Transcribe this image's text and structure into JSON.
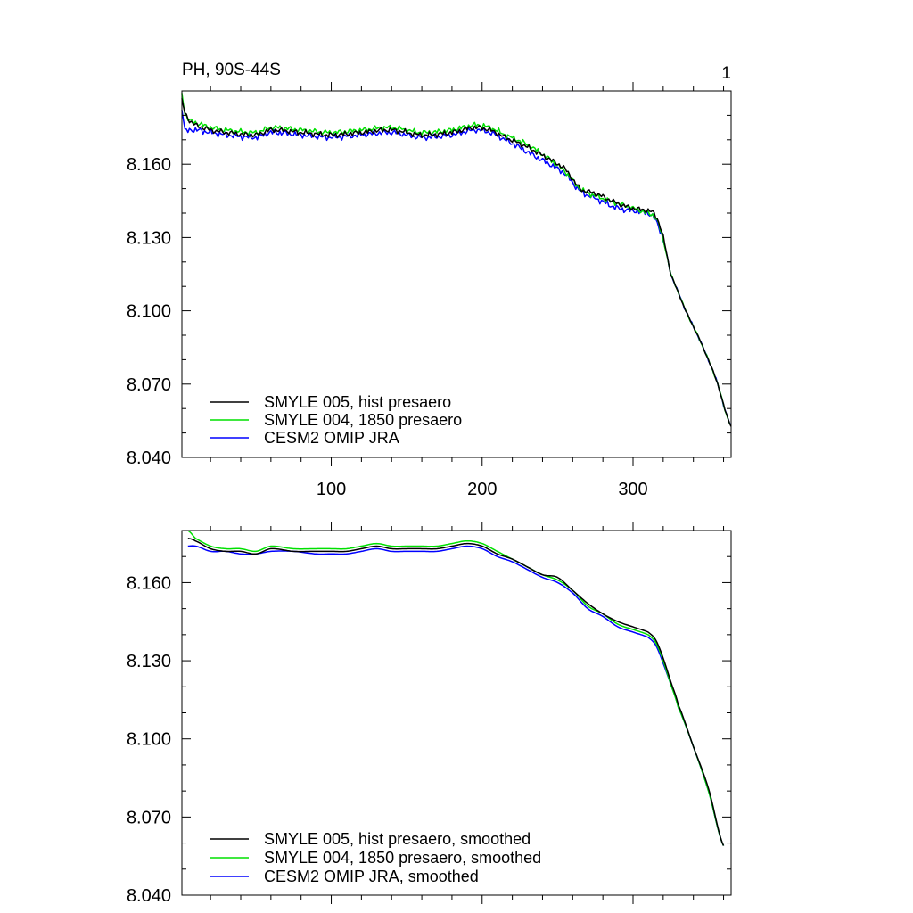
{
  "colors": {
    "SMYLE 005": "#000000",
    "SMYLE 004": "#00e000",
    "CESM2 OMIP": "#0000ff"
  },
  "chart_data": [
    {
      "type": "line",
      "title": "PH, 90S-44S",
      "panel_label": "1",
      "xlim": [
        1,
        365
      ],
      "ylim": [
        8.04,
        8.19
      ],
      "x_ticks": [
        100,
        200,
        300
      ],
      "x_tick_labels": [
        "100",
        "200",
        "300"
      ],
      "y_ticks": [
        8.04,
        8.07,
        8.1,
        8.13,
        8.16
      ],
      "y_tick_labels": [
        "8.040",
        "8.070",
        "8.100",
        "8.130",
        "8.160"
      ],
      "legend_position": "bottom-left",
      "series": [
        {
          "name": "SMYLE 005, hist presaero",
          "color_key": "SMYLE 005",
          "day_offset": 0,
          "noise": 0.0012,
          "x": [
            1,
            3,
            6,
            10,
            20,
            30,
            50,
            60,
            80,
            100,
            120,
            140,
            160,
            180,
            195,
            205,
            215,
            230,
            245,
            255,
            265,
            275,
            290,
            300,
            310,
            315,
            320,
            325,
            335,
            345,
            355,
            365
          ],
          "y": [
            8.186,
            8.181,
            8.178,
            8.176,
            8.174,
            8.173,
            8.172,
            8.174,
            8.173,
            8.172,
            8.173,
            8.174,
            8.172,
            8.173,
            8.175,
            8.174,
            8.171,
            8.167,
            8.162,
            8.158,
            8.15,
            8.148,
            8.144,
            8.142,
            8.141,
            8.139,
            8.13,
            8.115,
            8.1,
            8.087,
            8.072,
            8.053
          ]
        },
        {
          "name": "SMYLE 004, 1850 presaero",
          "color_key": "SMYLE 004",
          "day_offset": 0.001,
          "noise": 0.0012,
          "x": [
            1,
            3,
            6,
            10,
            20,
            30,
            50,
            60,
            80,
            100,
            120,
            140,
            160,
            180,
            195,
            205,
            215,
            230,
            245,
            255,
            265,
            275,
            290,
            300,
            310,
            315,
            320,
            325,
            335,
            345,
            355,
            365
          ],
          "y": [
            8.189,
            8.181,
            8.178,
            8.177,
            8.175,
            8.174,
            8.173,
            8.175,
            8.174,
            8.173,
            8.174,
            8.175,
            8.173,
            8.174,
            8.176,
            8.175,
            8.172,
            8.168,
            8.162,
            8.157,
            8.15,
            8.147,
            8.144,
            8.142,
            8.14,
            8.138,
            8.129,
            8.115,
            8.1,
            8.087,
            8.072,
            8.053
          ]
        },
        {
          "name": "CESM2 OMIP JRA",
          "color_key": "CESM2 OMIP",
          "day_offset": -0.0015,
          "noise": 0.0013,
          "x": [
            1,
            3,
            6,
            10,
            20,
            30,
            50,
            60,
            80,
            100,
            120,
            140,
            160,
            180,
            195,
            205,
            215,
            230,
            245,
            255,
            265,
            275,
            290,
            300,
            310,
            315,
            320,
            325,
            335,
            345,
            355,
            365
          ],
          "y": [
            8.183,
            8.174,
            8.174,
            8.174,
            8.173,
            8.172,
            8.171,
            8.173,
            8.172,
            8.171,
            8.172,
            8.173,
            8.171,
            8.172,
            8.174,
            8.173,
            8.17,
            8.165,
            8.16,
            8.156,
            8.149,
            8.146,
            8.142,
            8.141,
            8.14,
            8.137,
            8.129,
            8.115,
            8.1,
            8.087,
            8.072,
            8.053
          ]
        }
      ]
    },
    {
      "type": "line",
      "title": "",
      "xlim": [
        1,
        365
      ],
      "ylim": [
        8.04,
        8.18
      ],
      "x_ticks": [
        100,
        200,
        300
      ],
      "x_tick_labels": [
        "",
        "",
        ""
      ],
      "y_ticks": [
        8.04,
        8.07,
        8.1,
        8.13,
        8.16
      ],
      "y_tick_labels": [
        "8.040",
        "8.070",
        "8.100",
        "8.130",
        "8.160"
      ],
      "legend_position": "bottom-left",
      "series": [
        {
          "name": "SMYLE 005, hist presaero, smoothed",
          "color_key": "SMYLE 005",
          "day_offset": 0,
          "noise": 0,
          "x": [
            5,
            10,
            20,
            30,
            40,
            50,
            60,
            75,
            90,
            100,
            110,
            120,
            130,
            140,
            150,
            160,
            170,
            180,
            190,
            200,
            210,
            220,
            230,
            240,
            250,
            260,
            270,
            280,
            290,
            300,
            310,
            315,
            320,
            325,
            330,
            340,
            350,
            360
          ],
          "y": [
            8.177,
            8.176,
            8.173,
            8.172,
            8.172,
            8.171,
            8.173,
            8.172,
            8.172,
            8.172,
            8.172,
            8.173,
            8.174,
            8.173,
            8.173,
            8.173,
            8.173,
            8.174,
            8.175,
            8.174,
            8.171,
            8.169,
            8.166,
            8.163,
            8.162,
            8.157,
            8.152,
            8.148,
            8.145,
            8.143,
            8.141,
            8.138,
            8.131,
            8.122,
            8.113,
            8.097,
            8.081,
            8.059
          ]
        },
        {
          "name": "SMYLE 004, 1850 presaero, smoothed",
          "color_key": "SMYLE 004",
          "day_offset": 0,
          "noise": 0,
          "x": [
            5,
            10,
            20,
            30,
            40,
            50,
            60,
            75,
            90,
            100,
            110,
            120,
            130,
            140,
            150,
            160,
            170,
            180,
            190,
            200,
            210,
            220,
            230,
            240,
            250,
            260,
            270,
            280,
            290,
            300,
            310,
            315,
            320,
            325,
            330,
            340,
            350,
            360
          ],
          "y": [
            8.18,
            8.177,
            8.174,
            8.173,
            8.173,
            8.172,
            8.174,
            8.173,
            8.173,
            8.173,
            8.173,
            8.174,
            8.175,
            8.174,
            8.174,
            8.174,
            8.174,
            8.175,
            8.176,
            8.175,
            8.172,
            8.169,
            8.166,
            8.163,
            8.161,
            8.157,
            8.151,
            8.148,
            8.144,
            8.142,
            8.14,
            8.137,
            8.13,
            8.121,
            8.112,
            8.097,
            8.08,
            8.059
          ]
        },
        {
          "name": "CESM2 OMIP JRA, smoothed",
          "color_key": "CESM2 OMIP",
          "day_offset": 0,
          "noise": 0,
          "x": [
            5,
            10,
            20,
            30,
            40,
            50,
            60,
            75,
            90,
            100,
            110,
            120,
            130,
            140,
            150,
            160,
            170,
            180,
            190,
            200,
            210,
            220,
            230,
            240,
            250,
            260,
            270,
            280,
            290,
            300,
            310,
            315,
            320,
            325,
            330,
            340,
            350,
            360
          ],
          "y": [
            8.174,
            8.174,
            8.172,
            8.172,
            8.171,
            8.171,
            8.172,
            8.172,
            8.171,
            8.171,
            8.171,
            8.172,
            8.173,
            8.172,
            8.172,
            8.172,
            8.172,
            8.173,
            8.174,
            8.173,
            8.17,
            8.168,
            8.165,
            8.162,
            8.16,
            8.156,
            8.15,
            8.147,
            8.143,
            8.141,
            8.139,
            8.136,
            8.129,
            8.121,
            8.112,
            8.097,
            8.08,
            8.059
          ]
        }
      ]
    }
  ]
}
